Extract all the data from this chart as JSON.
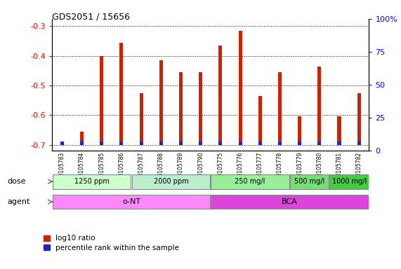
{
  "title": "GDS2051 / 15656",
  "samples": [
    "GSM105783",
    "GSM105784",
    "GSM105785",
    "GSM105786",
    "GSM105787",
    "GSM105788",
    "GSM105789",
    "GSM105790",
    "GSM105775",
    "GSM105776",
    "GSM105777",
    "GSM105778",
    "GSM105779",
    "GSM105780",
    "GSM105781",
    "GSM105782"
  ],
  "log10_ratio": [
    -0.7,
    -0.655,
    -0.4,
    -0.355,
    -0.525,
    -0.415,
    -0.455,
    -0.455,
    -0.365,
    -0.315,
    -0.535,
    -0.455,
    -0.605,
    -0.435,
    -0.605,
    -0.525
  ],
  "percentile": [
    2,
    5,
    3,
    3,
    3,
    3,
    3,
    3,
    5,
    5,
    5,
    4,
    3,
    3,
    4,
    3
  ],
  "bar_bottom": -0.7,
  "ylim_left": [
    -0.72,
    -0.275
  ],
  "ylim_right": [
    0,
    100
  ],
  "yticks_left": [
    -0.7,
    -0.6,
    -0.5,
    -0.4,
    -0.3
  ],
  "yticks_right": [
    0,
    25,
    50,
    75,
    100
  ],
  "red_color": "#cc2200",
  "blue_color": "#2222cc",
  "dose_labels": [
    {
      "text": "1250 ppm",
      "start": 0,
      "end": 3
    },
    {
      "text": "2000 ppm",
      "start": 4,
      "end": 7
    },
    {
      "text": "250 mg/l",
      "start": 8,
      "end": 11
    },
    {
      "text": "500 mg/l",
      "start": 12,
      "end": 13
    },
    {
      "text": "1000 mg/l",
      "start": 14,
      "end": 15
    }
  ],
  "agent_labels": [
    {
      "text": "o-NT",
      "start": 0,
      "end": 7
    },
    {
      "text": "BCA",
      "start": 8,
      "end": 15
    }
  ],
  "dose_colors": [
    "#ccffcc",
    "#bbeecc",
    "#99ee99",
    "#77dd77",
    "#44cc44"
  ],
  "agent_color_ont": "#ff88ff",
  "agent_color_bca": "#dd44dd",
  "legend_red": "log10 ratio",
  "legend_blue": "percentile rank within the sample",
  "bar_width": 0.18,
  "blue_bar_height": 0.012,
  "grid_color": "black",
  "background_color": "white"
}
